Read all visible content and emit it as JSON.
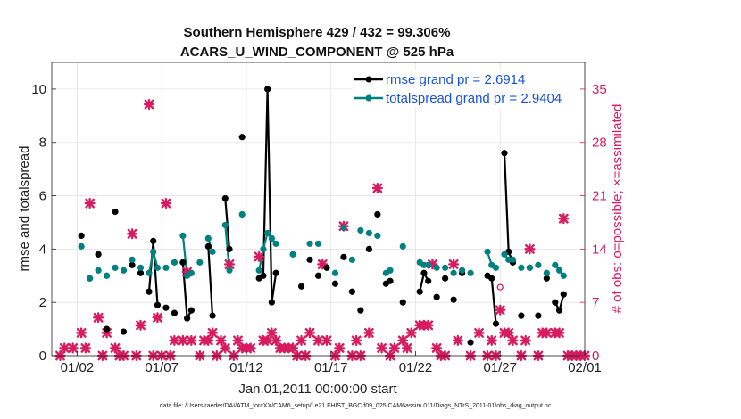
{
  "chart_data": {
    "type": "line",
    "title": [
      "Southern Hemisphere 429 / 432 = 99.306%",
      "ACARS_U_WIND_COMPONENT @ 525 hPa"
    ],
    "xlabel": "Jan.01,2011 00:00:00 start",
    "ylabel": "rmse and totalspread",
    "y2label": "# of obs: o=possible; ×=assimilated",
    "footnote": "data file: /Users/raeder/DAI/ATM_forcXX/CAM6_setup/f.e21.FHIST_BGC.f09_025.CAM6assim.011/Diags_NTrS_2011-01/obs_diag_output.nc",
    "xlim": [
      0.5,
      32
    ],
    "ylim": [
      0,
      11
    ],
    "y2lim": [
      0,
      38.5
    ],
    "xticks": [
      2,
      7,
      12,
      17,
      22,
      27,
      32
    ],
    "xtick_labels": [
      "01/02",
      "01/07",
      "01/12",
      "01/17",
      "01/22",
      "01/27",
      "02/01"
    ],
    "yticks": [
      0,
      2,
      4,
      6,
      8,
      10
    ],
    "ytick_labels": [
      "0",
      "2",
      "4",
      "6",
      "8",
      "10"
    ],
    "y2ticks": [
      0,
      7,
      14,
      21,
      28,
      35
    ],
    "y2tick_labels": [
      "0",
      "7",
      "14",
      "21",
      "28",
      "35"
    ],
    "colors": {
      "rmse": "#000000",
      "spread": "#00807f",
      "obs": "#d81b60",
      "legend_text": "#1a52d6"
    },
    "series": [
      {
        "name": "rmse",
        "legend": "rmse grand pr = 2.6914",
        "points": [
          [
            2.25,
            4.5
          ],
          [
            2.75,
            2.9
          ],
          [
            3.25,
            3.8
          ],
          [
            3.75,
            1.0
          ],
          [
            4.25,
            5.4
          ],
          [
            4.75,
            0.9
          ],
          [
            5.25,
            3.4
          ],
          [
            5.75,
            3.1
          ],
          [
            6.25,
            2.4
          ],
          [
            6.5,
            4.3
          ],
          [
            6.75,
            1.9
          ],
          [
            7.25,
            1.8
          ],
          [
            7.75,
            1.6
          ],
          [
            8.25,
            3.5
          ],
          [
            8.5,
            1.4
          ],
          [
            8.75,
            1.7
          ],
          [
            9.75,
            4.1
          ],
          [
            10.0,
            1.5
          ],
          [
            10.75,
            5.9
          ],
          [
            11.0,
            4.0
          ],
          [
            11.75,
            8.2
          ],
          [
            12.75,
            2.9
          ],
          [
            13.0,
            3.0
          ],
          [
            13.25,
            10.0
          ],
          [
            13.5,
            2.0
          ],
          [
            13.75,
            3.1
          ],
          [
            15.25,
            2.6
          ],
          [
            15.75,
            3.6
          ],
          [
            16.25,
            3.0
          ],
          [
            16.75,
            3.3
          ],
          [
            17.25,
            2.7
          ],
          [
            17.75,
            3.7
          ],
          [
            18.25,
            2.4
          ],
          [
            18.75,
            1.7
          ],
          [
            19.25,
            4.0
          ],
          [
            19.75,
            5.3
          ],
          [
            20.25,
            2.7
          ],
          [
            20.5,
            2.8
          ],
          [
            21.25,
            2.0
          ],
          [
            22.25,
            2.4
          ],
          [
            22.5,
            3.1
          ],
          [
            22.75,
            2.8
          ],
          [
            23.25,
            2.2
          ],
          [
            23.75,
            2.9
          ],
          [
            24.25,
            2.1
          ],
          [
            24.75,
            3.1
          ],
          [
            25.25,
            0.5
          ],
          [
            26.25,
            3.0
          ],
          [
            26.5,
            2.9
          ],
          [
            26.75,
            1.2
          ],
          [
            27.25,
            7.6
          ],
          [
            27.5,
            3.9
          ],
          [
            27.75,
            3.5
          ],
          [
            28.25,
            1.5
          ],
          [
            28.75,
            3.3
          ],
          [
            29.25,
            1.5
          ],
          [
            29.75,
            2.9
          ],
          [
            30.25,
            2.0
          ],
          [
            30.5,
            1.7
          ],
          [
            30.75,
            2.3
          ]
        ],
        "segments": [
          [
            [
              6.25,
              2.4
            ],
            [
              6.5,
              4.3
            ],
            [
              6.75,
              1.9
            ]
          ],
          [
            [
              8.25,
              3.5
            ],
            [
              8.5,
              1.4
            ],
            [
              8.75,
              1.7
            ]
          ],
          [
            [
              9.75,
              4.1
            ],
            [
              10.0,
              1.5
            ]
          ],
          [
            [
              10.75,
              5.9
            ],
            [
              11.0,
              4.0
            ]
          ],
          [
            [
              12.75,
              2.9
            ],
            [
              13.0,
              3.0
            ],
            [
              13.25,
              10.0
            ],
            [
              13.5,
              2.0
            ],
            [
              13.75,
              3.1
            ]
          ],
          [
            [
              20.25,
              2.7
            ],
            [
              20.5,
              2.8
            ]
          ],
          [
            [
              22.25,
              2.4
            ],
            [
              22.5,
              3.1
            ],
            [
              22.75,
              2.8
            ]
          ],
          [
            [
              26.25,
              3.0
            ],
            [
              26.5,
              2.9
            ],
            [
              26.75,
              1.2
            ]
          ],
          [
            [
              27.25,
              7.6
            ],
            [
              27.5,
              3.9
            ],
            [
              27.75,
              3.5
            ]
          ],
          [
            [
              30.25,
              2.0
            ],
            [
              30.5,
              1.7
            ],
            [
              30.75,
              2.3
            ]
          ]
        ]
      },
      {
        "name": "totalspread",
        "legend": "totalspread grand pr = 2.9404",
        "points": [
          [
            2.25,
            4.1
          ],
          [
            2.75,
            2.9
          ],
          [
            3.25,
            3.2
          ],
          [
            3.75,
            3.0
          ],
          [
            4.25,
            3.3
          ],
          [
            4.75,
            3.2
          ],
          [
            5.25,
            3.6
          ],
          [
            5.75,
            3.3
          ],
          [
            6.25,
            3.1
          ],
          [
            6.5,
            3.9
          ],
          [
            6.75,
            3.3
          ],
          [
            7.25,
            3.3
          ],
          [
            7.75,
            3.5
          ],
          [
            8.25,
            4.5
          ],
          [
            8.5,
            3.0
          ],
          [
            8.75,
            3.1
          ],
          [
            9.25,
            3.5
          ],
          [
            9.75,
            4.4
          ],
          [
            10.0,
            3.9
          ],
          [
            10.75,
            4.9
          ],
          [
            11.0,
            3.2
          ],
          [
            11.75,
            5.3
          ],
          [
            12.75,
            3.2
          ],
          [
            13.0,
            4.0
          ],
          [
            13.25,
            4.6
          ],
          [
            13.5,
            4.4
          ],
          [
            13.75,
            4.2
          ],
          [
            14.75,
            3.8
          ],
          [
            15.75,
            4.2
          ],
          [
            16.25,
            4.2
          ],
          [
            17.25,
            3.1
          ],
          [
            17.75,
            4.8
          ],
          [
            18.25,
            3.6
          ],
          [
            18.75,
            4.7
          ],
          [
            19.25,
            4.6
          ],
          [
            19.75,
            4.5
          ],
          [
            20.25,
            3.1
          ],
          [
            20.5,
            3.2
          ],
          [
            21.25,
            4.1
          ],
          [
            22.25,
            3.5
          ],
          [
            22.5,
            3.4
          ],
          [
            22.75,
            3.4
          ],
          [
            23.25,
            3.3
          ],
          [
            23.75,
            3.3
          ],
          [
            24.25,
            3.1
          ],
          [
            24.75,
            3.2
          ],
          [
            25.25,
            3.1
          ],
          [
            26.25,
            3.9
          ],
          [
            26.5,
            3.4
          ],
          [
            26.75,
            3.3
          ],
          [
            27.25,
            3.8
          ],
          [
            27.5,
            3.6
          ],
          [
            27.75,
            3.6
          ],
          [
            28.25,
            3.3
          ],
          [
            28.75,
            3.3
          ],
          [
            29.25,
            3.4
          ],
          [
            29.75,
            3.1
          ],
          [
            30.25,
            3.4
          ],
          [
            30.5,
            3.2
          ],
          [
            30.75,
            3.0
          ]
        ],
        "segments": [
          [
            [
              6.25,
              3.1
            ],
            [
              6.5,
              3.9
            ],
            [
              6.75,
              3.3
            ]
          ],
          [
            [
              8.25,
              4.5
            ],
            [
              8.5,
              3.0
            ],
            [
              8.75,
              3.1
            ]
          ],
          [
            [
              9.75,
              4.4
            ],
            [
              10.0,
              3.9
            ]
          ],
          [
            [
              10.75,
              4.9
            ],
            [
              11.0,
              3.2
            ]
          ],
          [
            [
              12.75,
              3.2
            ],
            [
              13.0,
              4.0
            ],
            [
              13.25,
              4.6
            ],
            [
              13.5,
              4.4
            ],
            [
              13.75,
              4.2
            ]
          ],
          [
            [
              20.25,
              3.1
            ],
            [
              20.5,
              3.2
            ]
          ],
          [
            [
              22.25,
              3.5
            ],
            [
              22.5,
              3.4
            ],
            [
              22.75,
              3.4
            ]
          ],
          [
            [
              26.25,
              3.9
            ],
            [
              26.5,
              3.4
            ],
            [
              26.75,
              3.3
            ]
          ],
          [
            [
              27.25,
              3.8
            ],
            [
              27.5,
              3.6
            ],
            [
              27.75,
              3.6
            ]
          ],
          [
            [
              30.25,
              3.4
            ],
            [
              30.5,
              3.2
            ],
            [
              30.75,
              3.0
            ]
          ]
        ]
      }
    ],
    "obs_assimilated": [
      [
        1,
        0
      ],
      [
        1.25,
        1
      ],
      [
        1.75,
        1
      ],
      [
        2.25,
        3
      ],
      [
        2.5,
        1
      ],
      [
        2.75,
        20
      ],
      [
        3.25,
        5
      ],
      [
        3.5,
        0
      ],
      [
        3.75,
        3
      ],
      [
        4.25,
        1
      ],
      [
        4.5,
        0
      ],
      [
        4.75,
        0
      ],
      [
        5.25,
        16
      ],
      [
        5.5,
        0
      ],
      [
        5.75,
        4
      ],
      [
        6.25,
        33
      ],
      [
        6.5,
        0
      ],
      [
        6.75,
        5
      ],
      [
        7.0,
        0
      ],
      [
        7.25,
        20
      ],
      [
        7.5,
        0
      ],
      [
        7.75,
        2
      ],
      [
        8.25,
        2
      ],
      [
        8.5,
        11
      ],
      [
        8.75,
        2
      ],
      [
        9.25,
        0
      ],
      [
        9.5,
        2
      ],
      [
        9.75,
        2
      ],
      [
        10.0,
        3
      ],
      [
        10.25,
        0
      ],
      [
        10.5,
        2
      ],
      [
        10.75,
        1
      ],
      [
        11.0,
        12
      ],
      [
        11.25,
        0
      ],
      [
        11.5,
        2
      ],
      [
        11.75,
        1
      ],
      [
        12.0,
        1
      ],
      [
        12.25,
        1
      ],
      [
        12.75,
        13
      ],
      [
        13.0,
        2
      ],
      [
        13.25,
        2
      ],
      [
        13.5,
        3
      ],
      [
        13.75,
        2
      ],
      [
        14.0,
        1
      ],
      [
        14.25,
        1
      ],
      [
        14.5,
        1
      ],
      [
        14.75,
        1
      ],
      [
        15.0,
        0
      ],
      [
        15.25,
        2
      ],
      [
        15.5,
        0
      ],
      [
        15.75,
        3
      ],
      [
        16.25,
        2
      ],
      [
        16.5,
        12
      ],
      [
        16.75,
        2
      ],
      [
        17.25,
        0
      ],
      [
        17.5,
        1
      ],
      [
        17.75,
        17
      ],
      [
        18.25,
        0
      ],
      [
        18.5,
        2
      ],
      [
        18.75,
        0
      ],
      [
        19.25,
        3
      ],
      [
        19.75,
        22
      ],
      [
        20.0,
        1
      ],
      [
        20.5,
        0
      ],
      [
        20.75,
        1
      ],
      [
        21.25,
        2
      ],
      [
        21.5,
        1
      ],
      [
        21.75,
        3
      ],
      [
        22.25,
        4
      ],
      [
        22.5,
        4
      ],
      [
        22.75,
        4
      ],
      [
        23.0,
        12
      ],
      [
        23.25,
        1
      ],
      [
        23.5,
        0
      ],
      [
        23.75,
        0
      ],
      [
        24.25,
        12
      ],
      [
        24.5,
        2
      ],
      [
        25.25,
        0
      ],
      [
        25.75,
        3
      ],
      [
        26.25,
        0
      ],
      [
        26.5,
        2
      ],
      [
        26.75,
        0
      ],
      [
        27.0,
        6
      ],
      [
        27.25,
        3
      ],
      [
        27.5,
        3
      ],
      [
        27.75,
        2
      ],
      [
        28.25,
        0
      ],
      [
        28.5,
        2
      ],
      [
        28.75,
        14
      ],
      [
        29.25,
        0
      ],
      [
        29.5,
        3
      ],
      [
        29.75,
        3
      ],
      [
        30.25,
        3
      ],
      [
        30.5,
        3
      ],
      [
        30.75,
        18
      ],
      [
        31.0,
        0
      ],
      [
        31.25,
        0
      ],
      [
        31.5,
        0
      ],
      [
        31.75,
        0
      ],
      [
        32.0,
        0
      ]
    ],
    "obs_possible": [
      [
        27.0,
        9
      ]
    ]
  }
}
